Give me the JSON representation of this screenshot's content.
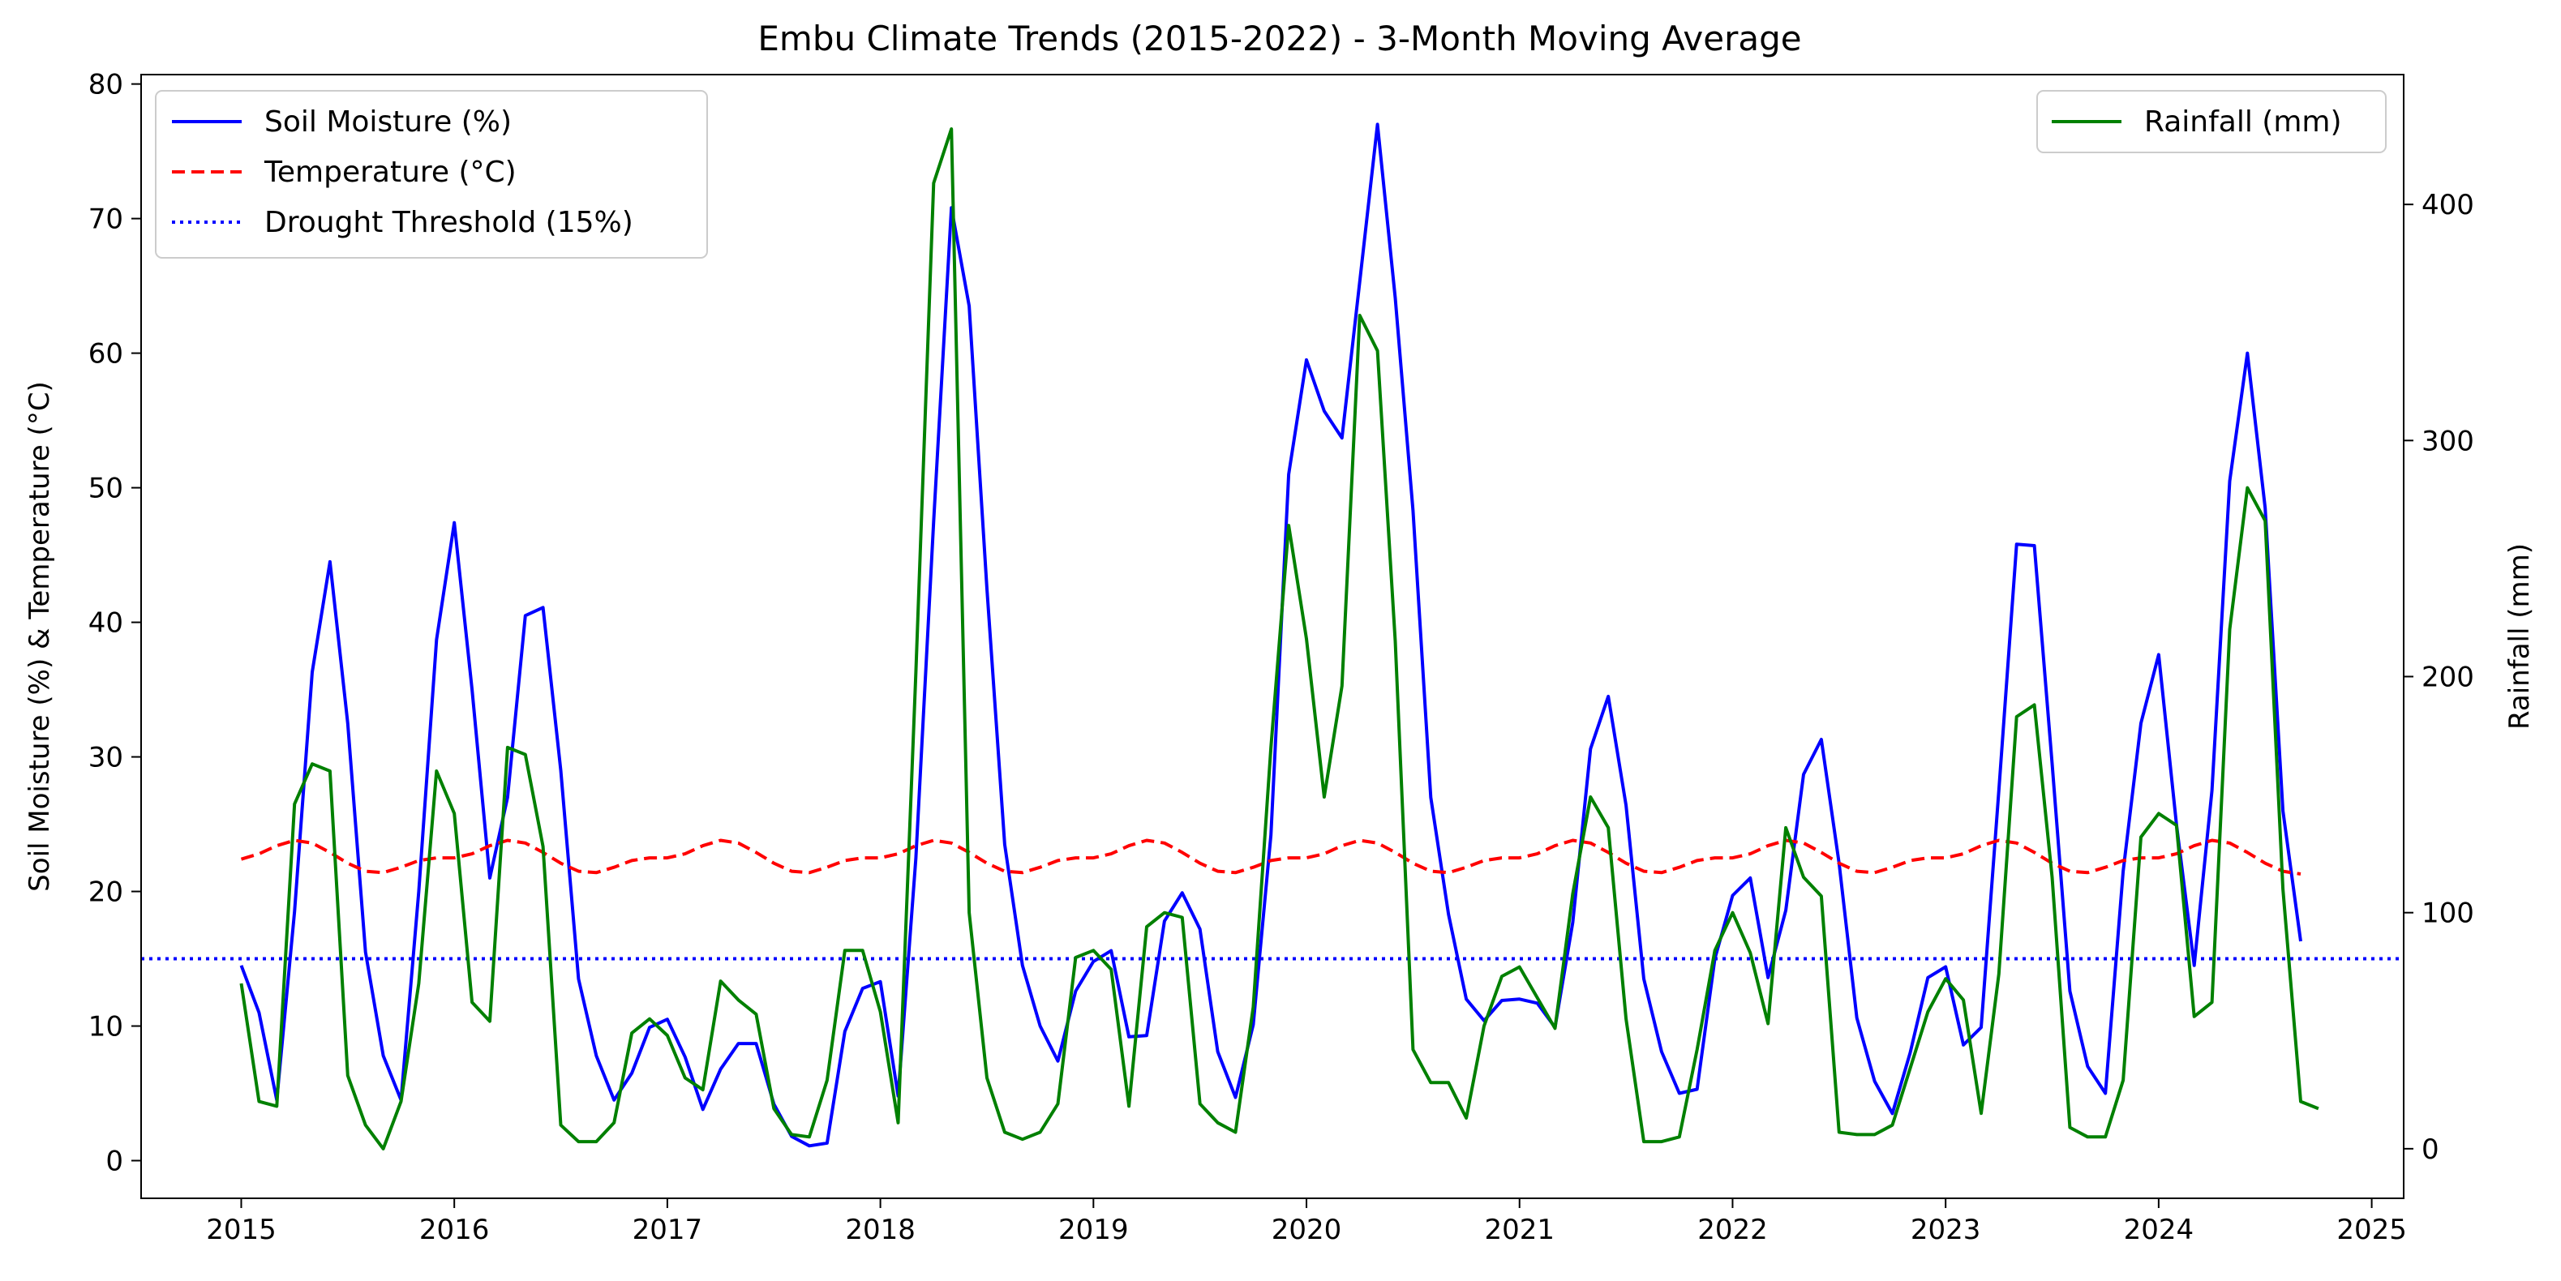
{
  "chart_data": {
    "type": "line",
    "title": "Embu Climate Trends (2015-2022) - 3-Month Moving Average",
    "ylabel_left": "Soil Moisture (%) & Temperature (°C)",
    "ylabel_right": "Rainfall (mm)",
    "xlabel": "",
    "x_start_year": 2015.0,
    "x_step_years": 0.0833333,
    "xlim": [
      2014.53,
      2025.15
    ],
    "ylim_left": [
      -2.8,
      80.7
    ],
    "ylim_right": [
      -21,
      455
    ],
    "xticks": [
      2015,
      2016,
      2017,
      2018,
      2019,
      2020,
      2021,
      2022,
      2023,
      2024,
      2025
    ],
    "yticks_left": [
      0,
      10,
      20,
      30,
      40,
      50,
      60,
      70,
      80
    ],
    "yticks_right": [
      0,
      100,
      200,
      300,
      400
    ],
    "grid": false,
    "legends": [
      {
        "placement": "top-left",
        "entries": [
          "Soil Moisture (%)",
          "Temperature (°C)",
          "Drought Threshold (15%)"
        ]
      },
      {
        "placement": "top-right",
        "entries": [
          "Rainfall (mm)"
        ]
      }
    ],
    "series": [
      {
        "name": "Soil Moisture (%)",
        "axis": "left",
        "color": "#0000ff",
        "style": "solid",
        "values": [
          14.5,
          11,
          4.5,
          18.5,
          36.3,
          44.5,
          32.5,
          15.5,
          7.8,
          4.5,
          20,
          38.7,
          47.4,
          35,
          21,
          27,
          40.5,
          41.1,
          29,
          13.5,
          7.8,
          4.5,
          6.5,
          9.9,
          10.5,
          7.7,
          3.8,
          6.8,
          8.7,
          8.7,
          4.2,
          1.8,
          1.1,
          1.3,
          9.6,
          12.8,
          13.3,
          4.8,
          22.5,
          47.5,
          70.8,
          63.5,
          42.5,
          23.5,
          14.5,
          10,
          7.4,
          12.6,
          14.8,
          15.6,
          9.2,
          9.3,
          17.8,
          19.9,
          17.2,
          8.1,
          4.7,
          10.1,
          24.2,
          51,
          59.5,
          55.7,
          53.7,
          65.3,
          77,
          64.1,
          48.3,
          27,
          18.3,
          12,
          10.4,
          11.9,
          12,
          11.7,
          9.9,
          17.7,
          30.6,
          34.5,
          26.4,
          13.5,
          8.1,
          5,
          5.3,
          15,
          19.7,
          21,
          13.6,
          18.6,
          28.7,
          31.3,
          22.1,
          10.6,
          5.9,
          3.5,
          8,
          13.6,
          14.4,
          8.6,
          9.9,
          27.5,
          45.8,
          45.7,
          29.5,
          12.6,
          7,
          5,
          21.5,
          32.5,
          37.6,
          25,
          14.5,
          27.5,
          50.5,
          60,
          48.5,
          26,
          16.3
        ]
      },
      {
        "name": "Temperature (°C)",
        "axis": "left",
        "color": "#ff0000",
        "style": "dashed",
        "values": [
          22.4,
          22.8,
          23.4,
          23.8,
          23.6,
          22.9,
          22.1,
          21.5,
          21.4,
          21.8,
          22.3,
          22.5,
          22.5,
          22.8,
          23.4,
          23.8,
          23.6,
          22.9,
          22.1,
          21.5,
          21.4,
          21.8,
          22.3,
          22.5,
          22.5,
          22.8,
          23.4,
          23.8,
          23.6,
          22.9,
          22.1,
          21.5,
          21.4,
          21.8,
          22.3,
          22.5,
          22.5,
          22.8,
          23.4,
          23.8,
          23.6,
          22.9,
          22.1,
          21.5,
          21.4,
          21.8,
          22.3,
          22.5,
          22.5,
          22.8,
          23.4,
          23.8,
          23.6,
          22.9,
          22.1,
          21.5,
          21.4,
          21.8,
          22.3,
          22.5,
          22.5,
          22.8,
          23.4,
          23.8,
          23.6,
          22.9,
          22.1,
          21.5,
          21.4,
          21.8,
          22.3,
          22.5,
          22.5,
          22.8,
          23.4,
          23.8,
          23.6,
          22.9,
          22.1,
          21.5,
          21.4,
          21.8,
          22.3,
          22.5,
          22.5,
          22.8,
          23.4,
          23.8,
          23.6,
          22.9,
          22.1,
          21.5,
          21.4,
          21.8,
          22.3,
          22.5,
          22.5,
          22.8,
          23.4,
          23.8,
          23.6,
          22.9,
          22.1,
          21.5,
          21.4,
          21.8,
          22.3,
          22.5,
          22.5,
          22.8,
          23.4,
          23.8,
          23.6,
          22.9,
          22.1,
          21.5,
          21.3
        ]
      },
      {
        "name": "Drought Threshold (15%)",
        "axis": "left",
        "color": "#0000ff",
        "style": "dotted",
        "constant": 15
      },
      {
        "name": "Rainfall (mm)",
        "axis": "right",
        "color": "#008000",
        "style": "solid",
        "values": [
          70,
          20,
          18,
          146,
          163,
          160,
          31,
          10,
          0,
          20,
          70,
          160,
          142,
          62,
          54,
          170,
          167,
          128,
          10,
          3,
          3,
          11,
          49,
          55,
          48,
          30,
          25,
          71,
          63,
          57,
          17,
          6,
          5,
          29,
          84,
          84,
          58,
          11,
          202,
          409,
          432,
          100,
          30,
          7,
          4,
          7,
          19,
          81,
          84,
          76,
          18,
          94,
          100,
          98,
          19,
          11,
          7,
          60,
          170,
          264,
          216,
          149,
          196,
          353,
          338,
          215,
          42,
          28,
          28,
          13,
          52,
          73,
          77,
          64,
          51,
          108,
          149,
          136,
          55,
          3,
          3,
          5,
          42,
          84,
          100,
          83,
          53,
          136,
          115,
          107,
          7,
          6,
          6,
          10,
          34,
          58,
          72,
          63,
          15,
          74,
          183,
          188,
          115,
          9,
          5,
          5,
          29,
          132,
          142,
          137,
          56,
          62,
          220,
          280,
          266,
          110,
          20,
          17
        ]
      }
    ]
  }
}
